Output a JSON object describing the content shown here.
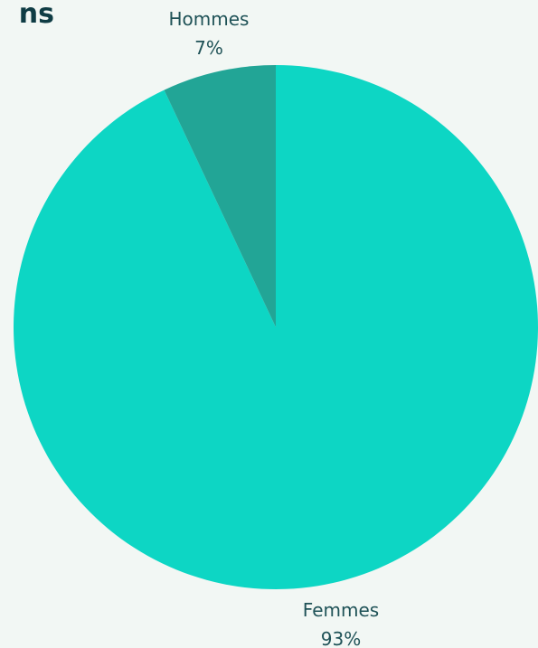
{
  "page": {
    "title_fragment": "ns"
  },
  "chart_data": {
    "type": "pie",
    "title": "",
    "slices": [
      {
        "label": "Femmes",
        "value": 93,
        "value_label": "93%",
        "color": "#0dd6c4"
      },
      {
        "label": "Hommes",
        "value": 7,
        "value_label": "7%",
        "color": "#22a596"
      }
    ],
    "start_angle": "12 o'clock",
    "direction": "clockwise",
    "labels_placement": "outside"
  }
}
